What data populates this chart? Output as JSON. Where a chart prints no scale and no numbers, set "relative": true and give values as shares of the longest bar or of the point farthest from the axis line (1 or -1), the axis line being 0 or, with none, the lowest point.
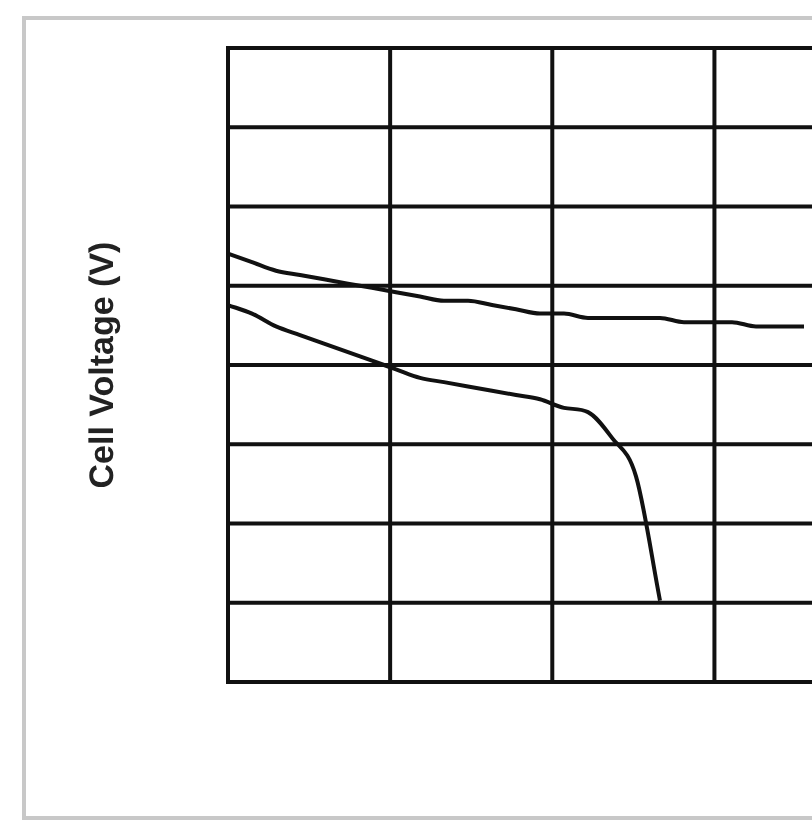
{
  "chart_data": {
    "type": "line",
    "ylabel": "Cell Voltage (V)",
    "relative": true,
    "grid": true,
    "marker": "none",
    "categories": [
      null,
      null,
      null,
      null,
      null,
      null,
      null,
      null,
      null,
      null,
      null,
      null,
      null,
      null,
      null,
      null,
      null,
      null,
      null,
      null,
      null,
      null,
      null,
      null,
      null
    ],
    "series": [
      {
        "color": "#111111",
        "values": [
          1.0,
          0.98,
          0.96,
          0.95,
          0.94,
          0.93,
          0.92,
          0.91,
          0.9,
          0.89,
          0.89,
          0.88,
          0.87,
          0.86,
          0.86,
          0.85,
          0.85,
          0.85,
          0.85,
          0.84,
          0.84,
          0.84,
          0.83,
          0.83,
          0.83
        ]
      },
      {
        "color": "#111111",
        "values": [
          0.88,
          0.86,
          0.83,
          0.81,
          0.79,
          0.77,
          0.75,
          0.73,
          0.71,
          0.7,
          0.69,
          0.68,
          0.67,
          0.66,
          0.64,
          0.63,
          0.57,
          0.48,
          0.19,
          null,
          null,
          null,
          null,
          null,
          null
        ]
      }
    ]
  }
}
